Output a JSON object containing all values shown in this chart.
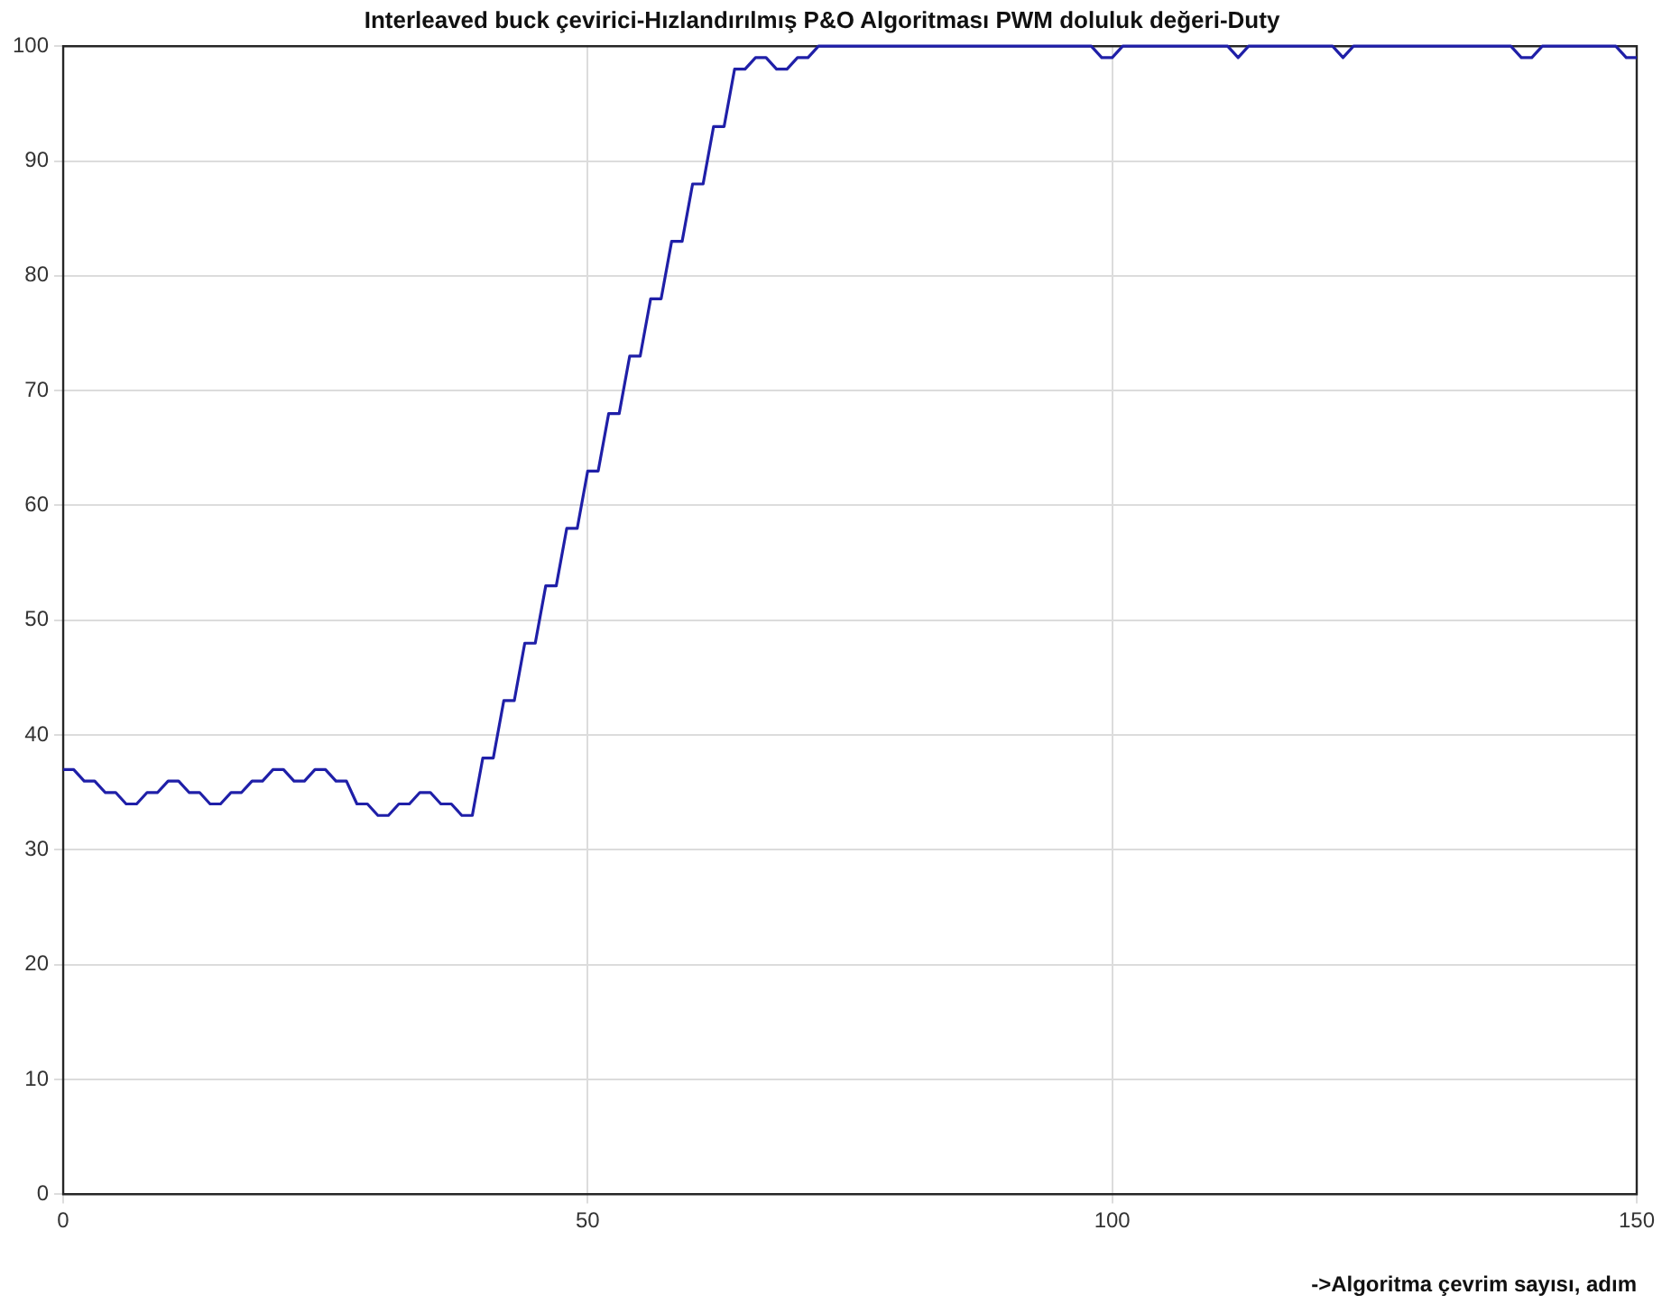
{
  "chart_data": {
    "type": "line",
    "title": "Interleaved buck çevirici-Hızlandırılmış P&O Algoritması PWM doluluk değeri-Duty",
    "xlabel": "->Algoritma çevrim sayısı, adım",
    "x": [
      0,
      1,
      2,
      3,
      4,
      5,
      6,
      7,
      8,
      9,
      10,
      11,
      12,
      13,
      14,
      15,
      16,
      17,
      18,
      19,
      20,
      21,
      22,
      23,
      24,
      25,
      26,
      27,
      28,
      29,
      30,
      31,
      32,
      33,
      34,
      35,
      36,
      37,
      38,
      39,
      40,
      41,
      42,
      43,
      44,
      45,
      46,
      47,
      48,
      49,
      50,
      51,
      52,
      53,
      54,
      55,
      56,
      57,
      58,
      59,
      60,
      61,
      62,
      63,
      64,
      65,
      66,
      67,
      68,
      69,
      70,
      71,
      72,
      73,
      98,
      99,
      100,
      101,
      111,
      112,
      113,
      121,
      122,
      123,
      138,
      139,
      140,
      141,
      148,
      149,
      150
    ],
    "series": [
      {
        "color": "#1f1fa8",
        "values": [
          37,
          37,
          36,
          36,
          35,
          35,
          34,
          34,
          35,
          35,
          36,
          36,
          35,
          35,
          34,
          34,
          35,
          35,
          36,
          36,
          37,
          37,
          36,
          36,
          37,
          37,
          36,
          36,
          34,
          34,
          33,
          33,
          34,
          34,
          35,
          35,
          34,
          34,
          33,
          33,
          38,
          38,
          43,
          43,
          48,
          48,
          53,
          53,
          58,
          58,
          63,
          63,
          68,
          68,
          73,
          73,
          78,
          78,
          83,
          83,
          88,
          88,
          93,
          93,
          98,
          98,
          99,
          99,
          98,
          98,
          99,
          99,
          100,
          100,
          100,
          99,
          99,
          100,
          100,
          99,
          100,
          100,
          99,
          100,
          100,
          99,
          99,
          100,
          100,
          99,
          99
        ]
      }
    ],
    "xlim": [
      0,
      150
    ],
    "xticks": [
      0,
      50,
      100,
      150
    ],
    "ylim": [
      0,
      100
    ],
    "yticks": [
      0,
      10,
      20,
      30,
      40,
      50,
      60,
      70,
      80,
      90,
      100
    ],
    "grid": true,
    "marker": "none",
    "line_style": "solid"
  }
}
